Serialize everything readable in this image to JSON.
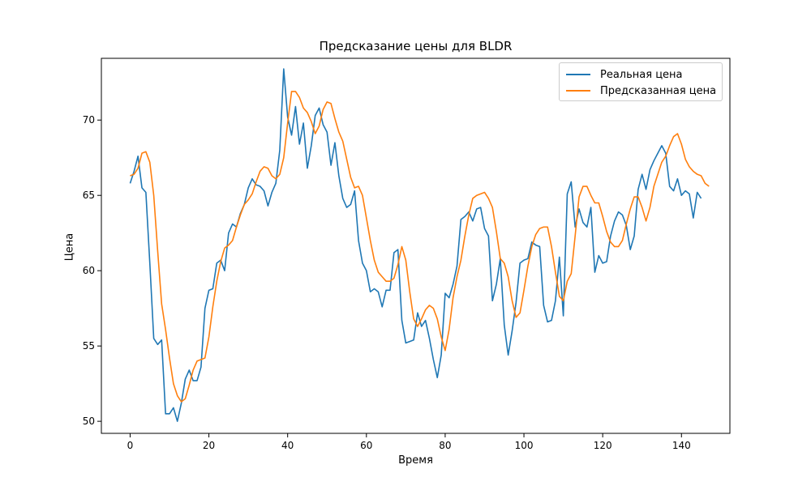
{
  "chart_data": {
    "type": "line",
    "title": "Предсказание цены для BLDR",
    "xlabel": "Время",
    "ylabel": "Цена",
    "xlim": [
      -7.3,
      152.3
    ],
    "ylim": [
      49.2,
      74.1
    ],
    "xticks": [
      0,
      20,
      40,
      60,
      80,
      100,
      120,
      140
    ],
    "yticks": [
      50,
      55,
      60,
      65,
      70
    ],
    "legend_position": "top-right",
    "series": [
      {
        "name": "Реальная цена",
        "color": "#1f77b4",
        "values": [
          65.8,
          66.6,
          67.6,
          65.5,
          65.2,
          60.5,
          55.5,
          55.1,
          55.4,
          50.5,
          50.5,
          50.9,
          50.0,
          51.2,
          52.8,
          53.4,
          52.7,
          52.7,
          53.6,
          57.5,
          58.7,
          58.8,
          60.5,
          60.7,
          60.0,
          62.5,
          63.1,
          62.9,
          63.8,
          64.4,
          65.5,
          66.1,
          65.7,
          65.6,
          65.3,
          64.3,
          65.2,
          65.8,
          68.0,
          73.4,
          70.2,
          69.0,
          70.9,
          68.4,
          69.8,
          66.8,
          68.3,
          70.3,
          70.8,
          69.7,
          69.2,
          67.0,
          68.5,
          66.3,
          64.8,
          64.2,
          64.4,
          65.3,
          62.0,
          60.5,
          60.0,
          58.6,
          58.8,
          58.6,
          57.6,
          58.7,
          58.7,
          61.2,
          61.4,
          56.7,
          55.2,
          55.3,
          55.4,
          57.2,
          56.3,
          56.7,
          55.5,
          54.1,
          52.9,
          54.4,
          58.5,
          58.2,
          59.1,
          60.3,
          63.4,
          63.6,
          63.9,
          63.3,
          64.1,
          64.2,
          62.8,
          62.3,
          58.0,
          59.1,
          60.8,
          56.4,
          54.4,
          56.0,
          57.9,
          60.5,
          60.7,
          60.8,
          61.9,
          61.7,
          61.6,
          57.7,
          56.6,
          56.7,
          58.0,
          60.9,
          57.0,
          65.1,
          65.9,
          62.9,
          64.1,
          63.2,
          62.9,
          64.2,
          59.9,
          61.0,
          60.5,
          60.6,
          62.3,
          63.3,
          63.9,
          63.7,
          63.0,
          61.4,
          62.3,
          65.4,
          66.4,
          65.4,
          66.7,
          67.3,
          67.8,
          68.3,
          67.8,
          65.6,
          65.3,
          66.1,
          65.0,
          65.3,
          65.1,
          63.5,
          65.2,
          64.8
        ]
      },
      {
        "name": "Предсказанная цена",
        "color": "#ff7f0e",
        "values": [
          66.3,
          66.4,
          66.8,
          67.8,
          67.9,
          67.2,
          65.0,
          61.3,
          57.8,
          56.1,
          54.2,
          52.5,
          51.7,
          51.3,
          51.5,
          52.4,
          53.4,
          54.0,
          54.1,
          54.2,
          55.6,
          57.6,
          59.3,
          60.6,
          61.5,
          61.7,
          62.0,
          62.9,
          63.7,
          64.4,
          64.7,
          65.1,
          65.9,
          66.6,
          66.9,
          66.8,
          66.3,
          66.1,
          66.4,
          67.5,
          69.8,
          71.9,
          71.9,
          71.5,
          70.8,
          70.5,
          69.9,
          69.1,
          69.6,
          70.7,
          71.2,
          71.1,
          70.1,
          69.2,
          68.6,
          67.4,
          66.2,
          65.5,
          65.6,
          65.0,
          63.5,
          62.0,
          60.7,
          59.9,
          59.6,
          59.3,
          59.3,
          59.5,
          60.4,
          61.6,
          60.7,
          58.6,
          56.8,
          56.3,
          56.8,
          57.4,
          57.7,
          57.5,
          56.8,
          55.6,
          54.7,
          56.1,
          58.2,
          59.6,
          60.7,
          62.3,
          63.7,
          64.8,
          65.0,
          65.1,
          65.2,
          64.8,
          64.2,
          62.6,
          60.8,
          60.5,
          59.6,
          58.0,
          56.9,
          57.2,
          58.7,
          60.3,
          61.6,
          62.4,
          62.8,
          62.9,
          62.9,
          61.6,
          59.9,
          58.3,
          58.0,
          59.3,
          59.8,
          62.3,
          64.9,
          65.6,
          65.6,
          65.0,
          64.5,
          64.5,
          63.6,
          62.6,
          61.9,
          61.6,
          61.6,
          62.0,
          63.1,
          64.1,
          64.9,
          64.9,
          64.2,
          63.3,
          64.2,
          65.6,
          66.4,
          67.2,
          67.6,
          68.3,
          68.9,
          69.1,
          68.4,
          67.4,
          66.9,
          66.6,
          66.4,
          66.3,
          65.8,
          65.6
        ]
      }
    ]
  }
}
